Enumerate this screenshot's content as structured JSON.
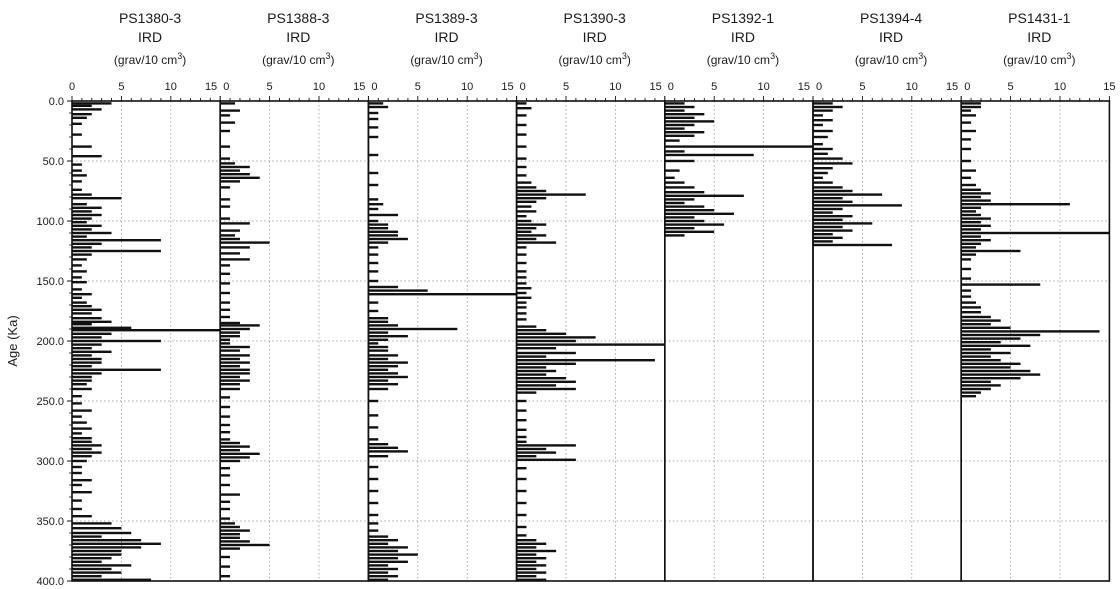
{
  "chart_data": {
    "type": "bar",
    "orientation": "horizontal",
    "ylabel": "Age (Ka)",
    "ylim": [
      0,
      400
    ],
    "yticks": [
      "0.0",
      "50.0",
      "100.0",
      "150.0",
      "200.0",
      "250.0",
      "300.0",
      "350.0",
      "400.0"
    ],
    "grid": "dotted",
    "panels": [
      {
        "title": "PS1380-3",
        "subtitle": "IRD",
        "unit": "(grav/10 cm",
        "xlim": [
          0,
          15
        ],
        "xticks": [
          "0",
          "5",
          "10",
          "15"
        ],
        "depth": [
          2,
          4,
          7,
          11,
          14,
          19,
          28,
          38,
          46,
          53,
          58,
          62,
          67,
          74,
          78,
          81,
          86,
          89,
          92,
          95,
          98,
          101,
          104,
          107,
          110,
          113,
          116,
          119,
          122,
          125,
          128,
          132,
          137,
          142,
          147,
          151,
          157,
          161,
          164,
          168,
          171,
          174,
          177,
          181,
          184,
          186,
          189,
          191,
          194,
          197,
          200,
          203,
          206,
          209,
          212,
          215,
          218,
          221,
          224,
          227,
          230,
          233,
          236,
          240,
          246,
          252,
          258,
          263,
          268,
          273,
          277,
          281,
          284,
          287,
          290,
          293,
          296,
          300,
          305,
          310,
          316,
          320,
          326,
          333,
          340,
          346,
          352,
          356,
          360,
          363,
          366,
          369,
          372,
          375,
          378,
          381,
          384,
          387,
          390,
          393,
          396,
          399
        ],
        "values": [
          4,
          2,
          3,
          2,
          1.5,
          1,
          1,
          2,
          3,
          1,
          1,
          1.5,
          1,
          1,
          2,
          5,
          1.5,
          3,
          2,
          3,
          2,
          1.5,
          3,
          2,
          4,
          1.5,
          9,
          3,
          2,
          9,
          2,
          1.5,
          1,
          1.5,
          1,
          1.5,
          1,
          2,
          1,
          1.5,
          2,
          3,
          2,
          3,
          4,
          2,
          6,
          15,
          4,
          3,
          9,
          3,
          2,
          4,
          2,
          3,
          3,
          2,
          9,
          3,
          2,
          2,
          1.5,
          2,
          1,
          1,
          2,
          1,
          1.5,
          2,
          1,
          2,
          2,
          3,
          2,
          3,
          2,
          1.5,
          1,
          1,
          2,
          1,
          2,
          1,
          1,
          2,
          4,
          5,
          6,
          3,
          7,
          9,
          7,
          5,
          5,
          4,
          3,
          6,
          4,
          5,
          3,
          8
        ]
      },
      {
        "title": "PS1388-3",
        "subtitle": "IRD",
        "unit": "(grav/10 cm",
        "xlim": [
          0,
          15
        ],
        "xticks": [
          "0",
          "5",
          "10",
          "15"
        ],
        "depth": [
          2,
          8,
          12,
          18,
          25,
          38,
          48,
          52,
          55,
          58,
          61,
          64,
          67,
          72,
          82,
          88,
          98,
          102,
          108,
          112,
          115,
          118,
          122,
          127,
          132,
          137,
          144,
          152,
          160,
          168,
          174,
          180,
          185,
          187,
          190,
          193,
          196,
          199,
          202,
          205,
          208,
          212,
          215,
          218,
          221,
          224,
          227,
          230,
          233,
          236,
          240,
          247,
          255,
          263,
          270,
          276,
          282,
          285,
          288,
          291,
          294,
          297,
          300,
          306,
          312,
          320,
          328,
          334,
          340,
          348,
          352,
          355,
          358,
          361,
          364,
          367,
          370,
          373,
          380,
          388,
          396
        ],
        "values": [
          1.5,
          2,
          1,
          1.5,
          1,
          1,
          1,
          1.5,
          3,
          2,
          3,
          4,
          2,
          1,
          1,
          1,
          1,
          3,
          2,
          1.5,
          2,
          5,
          3,
          2,
          3,
          1,
          1,
          1,
          1,
          1,
          1,
          1,
          2,
          4,
          3,
          2,
          2,
          1,
          1,
          3,
          2,
          3,
          2,
          3,
          2,
          3,
          3,
          2,
          3,
          2,
          2,
          1,
          1,
          1,
          1,
          1,
          1,
          2,
          3,
          2,
          4,
          3,
          2,
          1,
          1,
          1,
          2,
          1,
          1,
          1,
          1.5,
          2,
          3,
          2,
          2,
          3,
          5,
          2,
          1,
          1,
          1
        ]
      },
      {
        "title": "PS1389-3",
        "subtitle": "IRD",
        "unit": "(grav/10 cm",
        "xlim": [
          0,
          15
        ],
        "xticks": [
          "0",
          "5",
          "10",
          "15"
        ],
        "depth": [
          2,
          5,
          10,
          15,
          22,
          30,
          45,
          60,
          70,
          82,
          86,
          90,
          95,
          100,
          103,
          106,
          109,
          112,
          115,
          118,
          122,
          128,
          135,
          142,
          150,
          155,
          158,
          161,
          168,
          175,
          181,
          184,
          187,
          190,
          193,
          196,
          199,
          202,
          205,
          208,
          212,
          215,
          218,
          221,
          224,
          227,
          230,
          233,
          236,
          240,
          250,
          262,
          272,
          282,
          286,
          289,
          292,
          296,
          305,
          315,
          325,
          335,
          345,
          352,
          358,
          363,
          366,
          369,
          372,
          375,
          378,
          381,
          384,
          387,
          390,
          393,
          396,
          399
        ],
        "values": [
          1.5,
          2,
          1,
          1,
          1,
          1,
          1,
          1,
          1,
          1,
          1.5,
          1,
          3,
          1,
          2,
          2,
          3,
          3,
          4,
          2,
          1,
          1,
          1,
          1,
          1,
          3,
          6,
          15,
          1,
          1,
          2,
          2,
          3,
          9,
          2,
          4,
          2,
          1,
          2,
          2,
          3,
          2,
          4,
          3,
          2,
          3,
          4,
          2,
          3,
          2,
          1,
          1,
          1,
          1,
          2,
          3,
          4,
          2,
          1,
          1,
          1,
          1,
          1,
          1,
          1,
          2,
          3,
          2,
          4,
          3,
          5,
          3,
          4,
          2,
          3,
          2,
          3,
          2
        ]
      },
      {
        "title": "PS1390-3",
        "subtitle": "IRD",
        "unit": "(grav/10 cm",
        "xlim": [
          0,
          15
        ],
        "xticks": [
          "0",
          "5",
          "10",
          "15"
        ],
        "depth": [
          2,
          6,
          12,
          20,
          28,
          38,
          48,
          55,
          62,
          68,
          72,
          75,
          78,
          81,
          84,
          88,
          92,
          96,
          100,
          103,
          106,
          109,
          112,
          115,
          118,
          122,
          128,
          135,
          142,
          147,
          152,
          156,
          160,
          164,
          168,
          172,
          177,
          182,
          188,
          191,
          194,
          197,
          200,
          203,
          206,
          210,
          213,
          216,
          219,
          222,
          225,
          228,
          231,
          234,
          237,
          240,
          243,
          250,
          258,
          266,
          274,
          280,
          284,
          287,
          290,
          293,
          296,
          299,
          306,
          315,
          325,
          335,
          345,
          355,
          362,
          366,
          369,
          372,
          375,
          378,
          381,
          384,
          387,
          390,
          393,
          396,
          399
        ],
        "values": [
          1,
          1.5,
          1,
          1,
          1,
          1,
          1,
          1,
          1,
          1.5,
          2,
          3,
          7,
          3,
          2,
          1.5,
          2,
          1,
          1.5,
          3,
          2,
          1.5,
          3,
          2,
          4,
          1,
          1,
          1,
          1,
          1,
          1,
          1.5,
          1,
          1.5,
          1,
          1,
          1,
          1,
          2,
          3,
          5,
          8,
          6,
          15,
          4,
          6,
          3,
          14,
          6,
          3,
          4,
          3,
          5,
          6,
          4,
          6,
          2,
          1,
          1,
          1,
          1,
          1,
          1,
          6,
          3,
          4,
          2,
          6,
          1,
          1,
          1,
          1,
          1,
          1,
          1,
          2,
          3,
          2,
          4,
          2,
          3,
          2,
          3,
          2,
          3,
          2,
          3
        ]
      },
      {
        "title": "PS1392-1",
        "subtitle": "IRD",
        "unit": "(grav/10 cm",
        "xlim": [
          0,
          15
        ],
        "xticks": [
          "0",
          "5",
          "10",
          "15"
        ],
        "depth": [
          2,
          5,
          8,
          11,
          14,
          17,
          20,
          23,
          26,
          29,
          33,
          38,
          42,
          45,
          50,
          58,
          64,
          68,
          72,
          76,
          79,
          82,
          85,
          88,
          91,
          94,
          97,
          100,
          103,
          106,
          109,
          112
        ],
        "values": [
          2,
          3,
          2,
          4,
          3,
          5,
          3,
          2,
          4,
          3,
          1.5,
          15,
          2,
          9,
          3,
          1.5,
          1,
          2,
          3,
          4,
          8,
          3,
          2,
          4,
          5,
          7,
          3,
          4,
          6,
          3,
          5,
          2
        ]
      },
      {
        "title": "PS1394-4",
        "subtitle": "IRD",
        "unit": "(grav/10 cm",
        "xlim": [
          0,
          15
        ],
        "xticks": [
          "0",
          "5",
          "10",
          "15"
        ],
        "depth": [
          2,
          5,
          8,
          12,
          16,
          20,
          25,
          30,
          36,
          40,
          44,
          48,
          52,
          56,
          60,
          64,
          68,
          72,
          75,
          78,
          81,
          84,
          87,
          90,
          93,
          96,
          99,
          102,
          105,
          108,
          111,
          114,
          117,
          120
        ],
        "values": [
          2,
          3,
          2,
          1,
          2,
          1,
          2,
          1.5,
          1,
          2,
          1.5,
          3,
          4,
          2,
          1.5,
          1,
          2,
          3,
          4,
          7,
          3,
          4,
          9,
          3,
          2,
          4,
          3,
          6,
          3,
          4,
          2,
          3,
          2,
          8
        ]
      },
      {
        "title": "PS1431-1",
        "subtitle": "IRD",
        "unit": "(grav/10 cm",
        "xlim": [
          0,
          15
        ],
        "xticks": [
          "0",
          "5",
          "10",
          "15"
        ],
        "depth": [
          2,
          5,
          8,
          12,
          18,
          25,
          32,
          40,
          50,
          58,
          64,
          70,
          74,
          77,
          80,
          83,
          86,
          89,
          92,
          95,
          98,
          101,
          104,
          107,
          110,
          113,
          116,
          119,
          122,
          125,
          128,
          132,
          140,
          148,
          153,
          158,
          163,
          168,
          172,
          176,
          180,
          183,
          186,
          189,
          192,
          195,
          198,
          201,
          204,
          207,
          210,
          213,
          216,
          219,
          222,
          225,
          228,
          231,
          234,
          237,
          240,
          243,
          246
        ],
        "values": [
          2,
          2,
          1,
          1.5,
          1,
          1.5,
          1,
          1,
          1,
          1.5,
          1,
          1.5,
          2,
          3,
          2,
          3,
          11,
          2,
          1.5,
          2,
          3,
          2,
          3,
          2,
          15,
          2,
          3,
          2,
          1.5,
          6,
          1.5,
          1,
          1,
          1,
          8,
          1,
          1,
          1.5,
          2,
          2,
          3,
          4,
          3,
          5,
          14,
          8,
          6,
          4,
          7,
          3,
          5,
          3,
          4,
          6,
          5,
          7,
          8,
          6,
          3,
          4,
          3,
          2,
          1.5
        ]
      }
    ]
  }
}
